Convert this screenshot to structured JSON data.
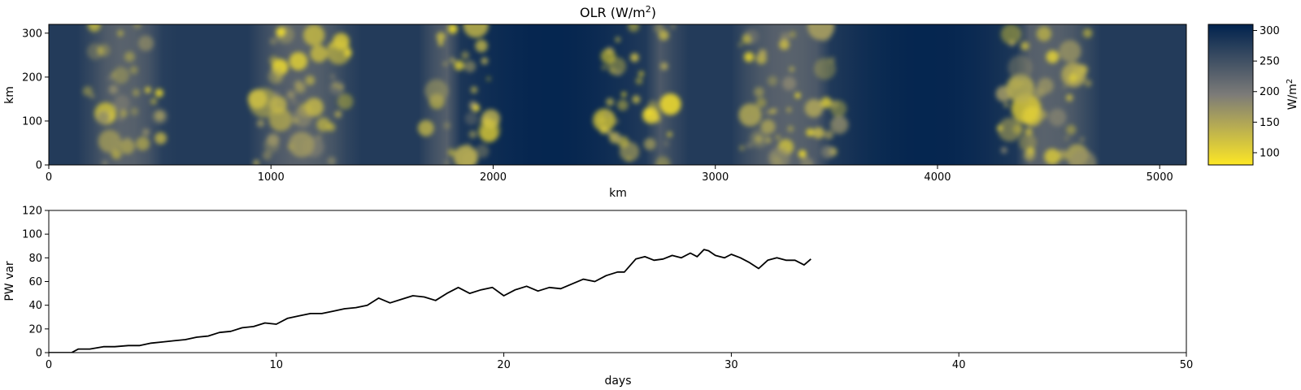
{
  "chart_data": [
    {
      "type": "heatmap",
      "title_main": "OLR (W/m",
      "title_sup": "2",
      "title_tail": ")",
      "xlabel": "km",
      "ylabel": "km",
      "xlim": [
        0,
        5120
      ],
      "ylim": [
        0,
        320
      ],
      "xticks": [
        "0",
        "1000",
        "2000",
        "3000",
        "4000",
        "5000"
      ],
      "yticks": [
        "0",
        "100",
        "200",
        "300"
      ],
      "colorbar": {
        "label_main": "W/m",
        "label_sup": "2",
        "range": [
          80,
          310
        ],
        "ticks": [
          "100",
          "150",
          "200",
          "250",
          "300"
        ],
        "colors": {
          "low": "#fde725",
          "mid": "#7c7b78",
          "high": "#00224e"
        }
      },
      "convective_bands_km": [
        {
          "center": 340,
          "width": 330
        },
        {
          "center": 1140,
          "width": 420
        },
        {
          "center": 1840,
          "width": 300
        },
        {
          "center": 2660,
          "width": 350
        },
        {
          "center": 3330,
          "width": 460
        },
        {
          "center": 4490,
          "width": 420
        }
      ],
      "clear_sky_bands_km": [
        {
          "center": 2250
        },
        {
          "center": 3950
        }
      ]
    },
    {
      "type": "line",
      "xlabel": "days",
      "ylabel": "PW var",
      "xlim": [
        0,
        50
      ],
      "ylim": [
        0,
        120
      ],
      "xticks": [
        "0",
        "10",
        "20",
        "30",
        "40",
        "50"
      ],
      "yticks": [
        "0",
        "20",
        "40",
        "60",
        "80",
        "100",
        "120"
      ],
      "color": "#000000",
      "series": [
        {
          "x": [
            0,
            0.5,
            1.0,
            1.3,
            1.8,
            2.4,
            2.9,
            3.5,
            4.0,
            4.5,
            5.0,
            5.5,
            6.0,
            6.5,
            7.0,
            7.5,
            8.0,
            8.5,
            9.0,
            9.5,
            10.0,
            10.5,
            11.0,
            11.5,
            12.0,
            12.5,
            13.0,
            13.5,
            14.0,
            14.5,
            15.0,
            15.5,
            16.0,
            16.5,
            17.0,
            17.5,
            18.0,
            18.5,
            19.0,
            19.5,
            20.0,
            20.5,
            21.0,
            21.5,
            22.0,
            22.5,
            23.0,
            23.5,
            24.0,
            24.5,
            25.0,
            25.3,
            25.8,
            26.2,
            26.6,
            27.0,
            27.4,
            27.8,
            28.2,
            28.5,
            28.8,
            29.0,
            29.3,
            29.7,
            30.0,
            30.4,
            30.8,
            31.2,
            31.6,
            32.0,
            32.4,
            32.8,
            33.2,
            33.5
          ],
          "y": [
            0,
            0,
            0,
            3,
            3,
            5,
            5,
            6,
            6,
            8,
            9,
            10,
            11,
            13,
            14,
            17,
            18,
            21,
            22,
            25,
            24,
            29,
            31,
            33,
            33,
            35,
            37,
            38,
            40,
            46,
            42,
            45,
            48,
            47,
            44,
            50,
            55,
            50,
            53,
            55,
            48,
            53,
            56,
            52,
            55,
            54,
            58,
            62,
            60,
            65,
            68,
            68,
            79,
            81,
            78,
            79,
            82,
            80,
            84,
            81,
            87,
            86,
            82,
            80,
            83,
            80,
            76,
            71,
            78,
            80,
            78,
            78,
            74,
            79
          ]
        }
      ]
    }
  ]
}
